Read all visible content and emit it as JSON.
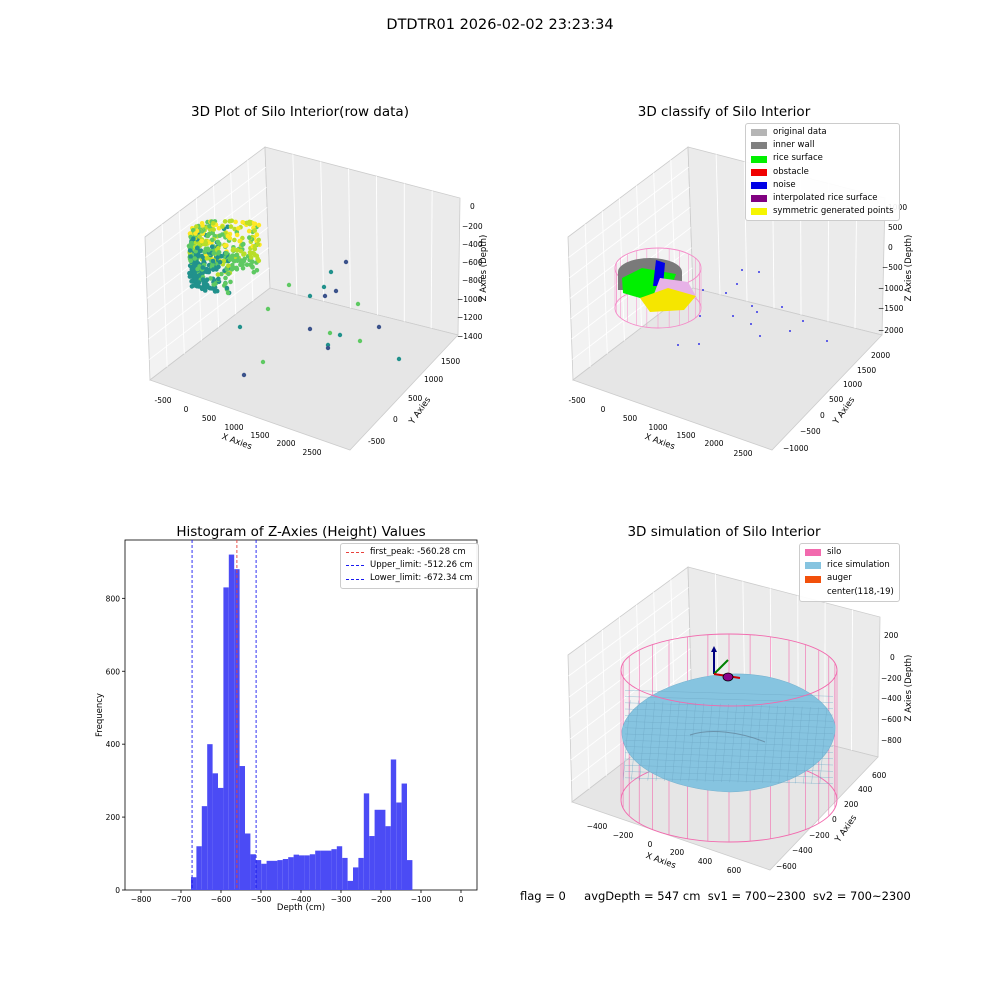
{
  "figure": {
    "suptitle": "DTDTR01 2026-02-02 23:23:34",
    "status": {
      "flag": "flag = 0",
      "avg_depth": "avgDepth = 547 cm",
      "sv1": "sv1 = 700~2300",
      "sv2": "sv2 = 700~2300"
    }
  },
  "colors": {
    "hist_bar": "#4b4bf5",
    "first_peak_line": "#e8413c",
    "limit_line": "#1a1af0",
    "silo": "#f26aae",
    "rice_simulation": "#86c4e0",
    "auger": "#f2500b"
  },
  "chart_data": [
    {
      "type": "scatter3d",
      "title": "3D Plot of Silo Interior(row data)",
      "xlabel": "X Axies",
      "ylabel": "Y Axies",
      "zlabel": "Z Axies (Depth)",
      "xticks": [
        "-500",
        "0",
        "500",
        "1000",
        "1500",
        "2000",
        "2500"
      ],
      "yticks": [
        "-500",
        "0",
        "500",
        "1000",
        "1500"
      ],
      "zticks": [
        "0",
        "−200",
        "−400",
        "−600",
        "−800",
        "−1000",
        "−1200",
        "−1400"
      ],
      "colormap": "viridis",
      "grid": true
    },
    {
      "type": "scatter3d",
      "title": "3D classify of Silo Interior",
      "xlabel": "X Axies",
      "ylabel": "Y Axies",
      "zlabel": "Z Axies (Depth)",
      "xticks": [
        "-500",
        "0",
        "500",
        "1000",
        "1500",
        "2000",
        "2500"
      ],
      "yticks": [
        "−1000",
        "−500",
        "0",
        "500",
        "1000",
        "1500",
        "2000"
      ],
      "zticks": [
        "1000",
        "500",
        "0",
        "−500",
        "−1000",
        "−1500",
        "−2000"
      ],
      "legend": [
        {
          "label": "original data",
          "color": "#b5b5b5"
        },
        {
          "label": "inner wall",
          "color": "#808080"
        },
        {
          "label": "rice surface",
          "color": "#00f000"
        },
        {
          "label": "obstacle",
          "color": "#f00000"
        },
        {
          "label": "noise",
          "color": "#0000e6"
        },
        {
          "label": "interpolated rice surface",
          "color": "#800080"
        },
        {
          "label": "symmetric generated points",
          "color": "#f5f500"
        }
      ],
      "legend_position": "top-right",
      "grid": true
    },
    {
      "type": "bar",
      "title": "Histogram of Z-Axies (Height) Values",
      "xlabel": "Depth (cm)",
      "ylabel": "Frequency",
      "xlim": [
        -840,
        40
      ],
      "ylim": [
        0,
        960
      ],
      "xticks": [
        -800,
        -700,
        -600,
        -500,
        -400,
        -300,
        -200,
        -100,
        0
      ],
      "yticks": [
        0,
        200,
        400,
        600,
        800
      ],
      "bin_start": -675,
      "bin_width": 13.5,
      "values": [
        35,
        120,
        230,
        400,
        320,
        280,
        830,
        920,
        880,
        340,
        155,
        98,
        82,
        72,
        80,
        80,
        82,
        85,
        90,
        97,
        95,
        95,
        98,
        108,
        108,
        108,
        112,
        120,
        88,
        25,
        62,
        88,
        265,
        148,
        220,
        220,
        175,
        358,
        240,
        292,
        82
      ],
      "vlines": [
        {
          "label": "first_peak: -560.28 cm",
          "x": -560.28,
          "color": "#e8413c"
        },
        {
          "label": "Upper_limit: -512.26 cm",
          "x": -512.26,
          "color": "#1a1af0"
        },
        {
          "label": "Lower_limit: -672.34 cm",
          "x": -672.34,
          "color": "#1a1af0"
        }
      ],
      "legend_position": "top-right",
      "grid": false
    },
    {
      "type": "surface3d",
      "title": "3D simulation of Silo Interior",
      "xlabel": "X Axies",
      "ylabel": "Y Axies",
      "zlabel": "Z Axies (Depth)",
      "xticks": [
        "−400",
        "−200",
        "0",
        "200",
        "400",
        "600"
      ],
      "yticks": [
        "−600",
        "−400",
        "−200",
        "0",
        "200",
        "400",
        "600"
      ],
      "zticks": [
        "200",
        "0",
        "−200",
        "−400",
        "−600",
        "−800"
      ],
      "legend": [
        {
          "label": "silo",
          "color": "#f26aae"
        },
        {
          "label": "rice simulation",
          "color": "#86c4e0"
        },
        {
          "label": "auger",
          "color": "#f2500b"
        },
        {
          "label": "center(118,-19)",
          "color": ""
        }
      ],
      "legend_position": "top-right",
      "grid": true
    }
  ]
}
